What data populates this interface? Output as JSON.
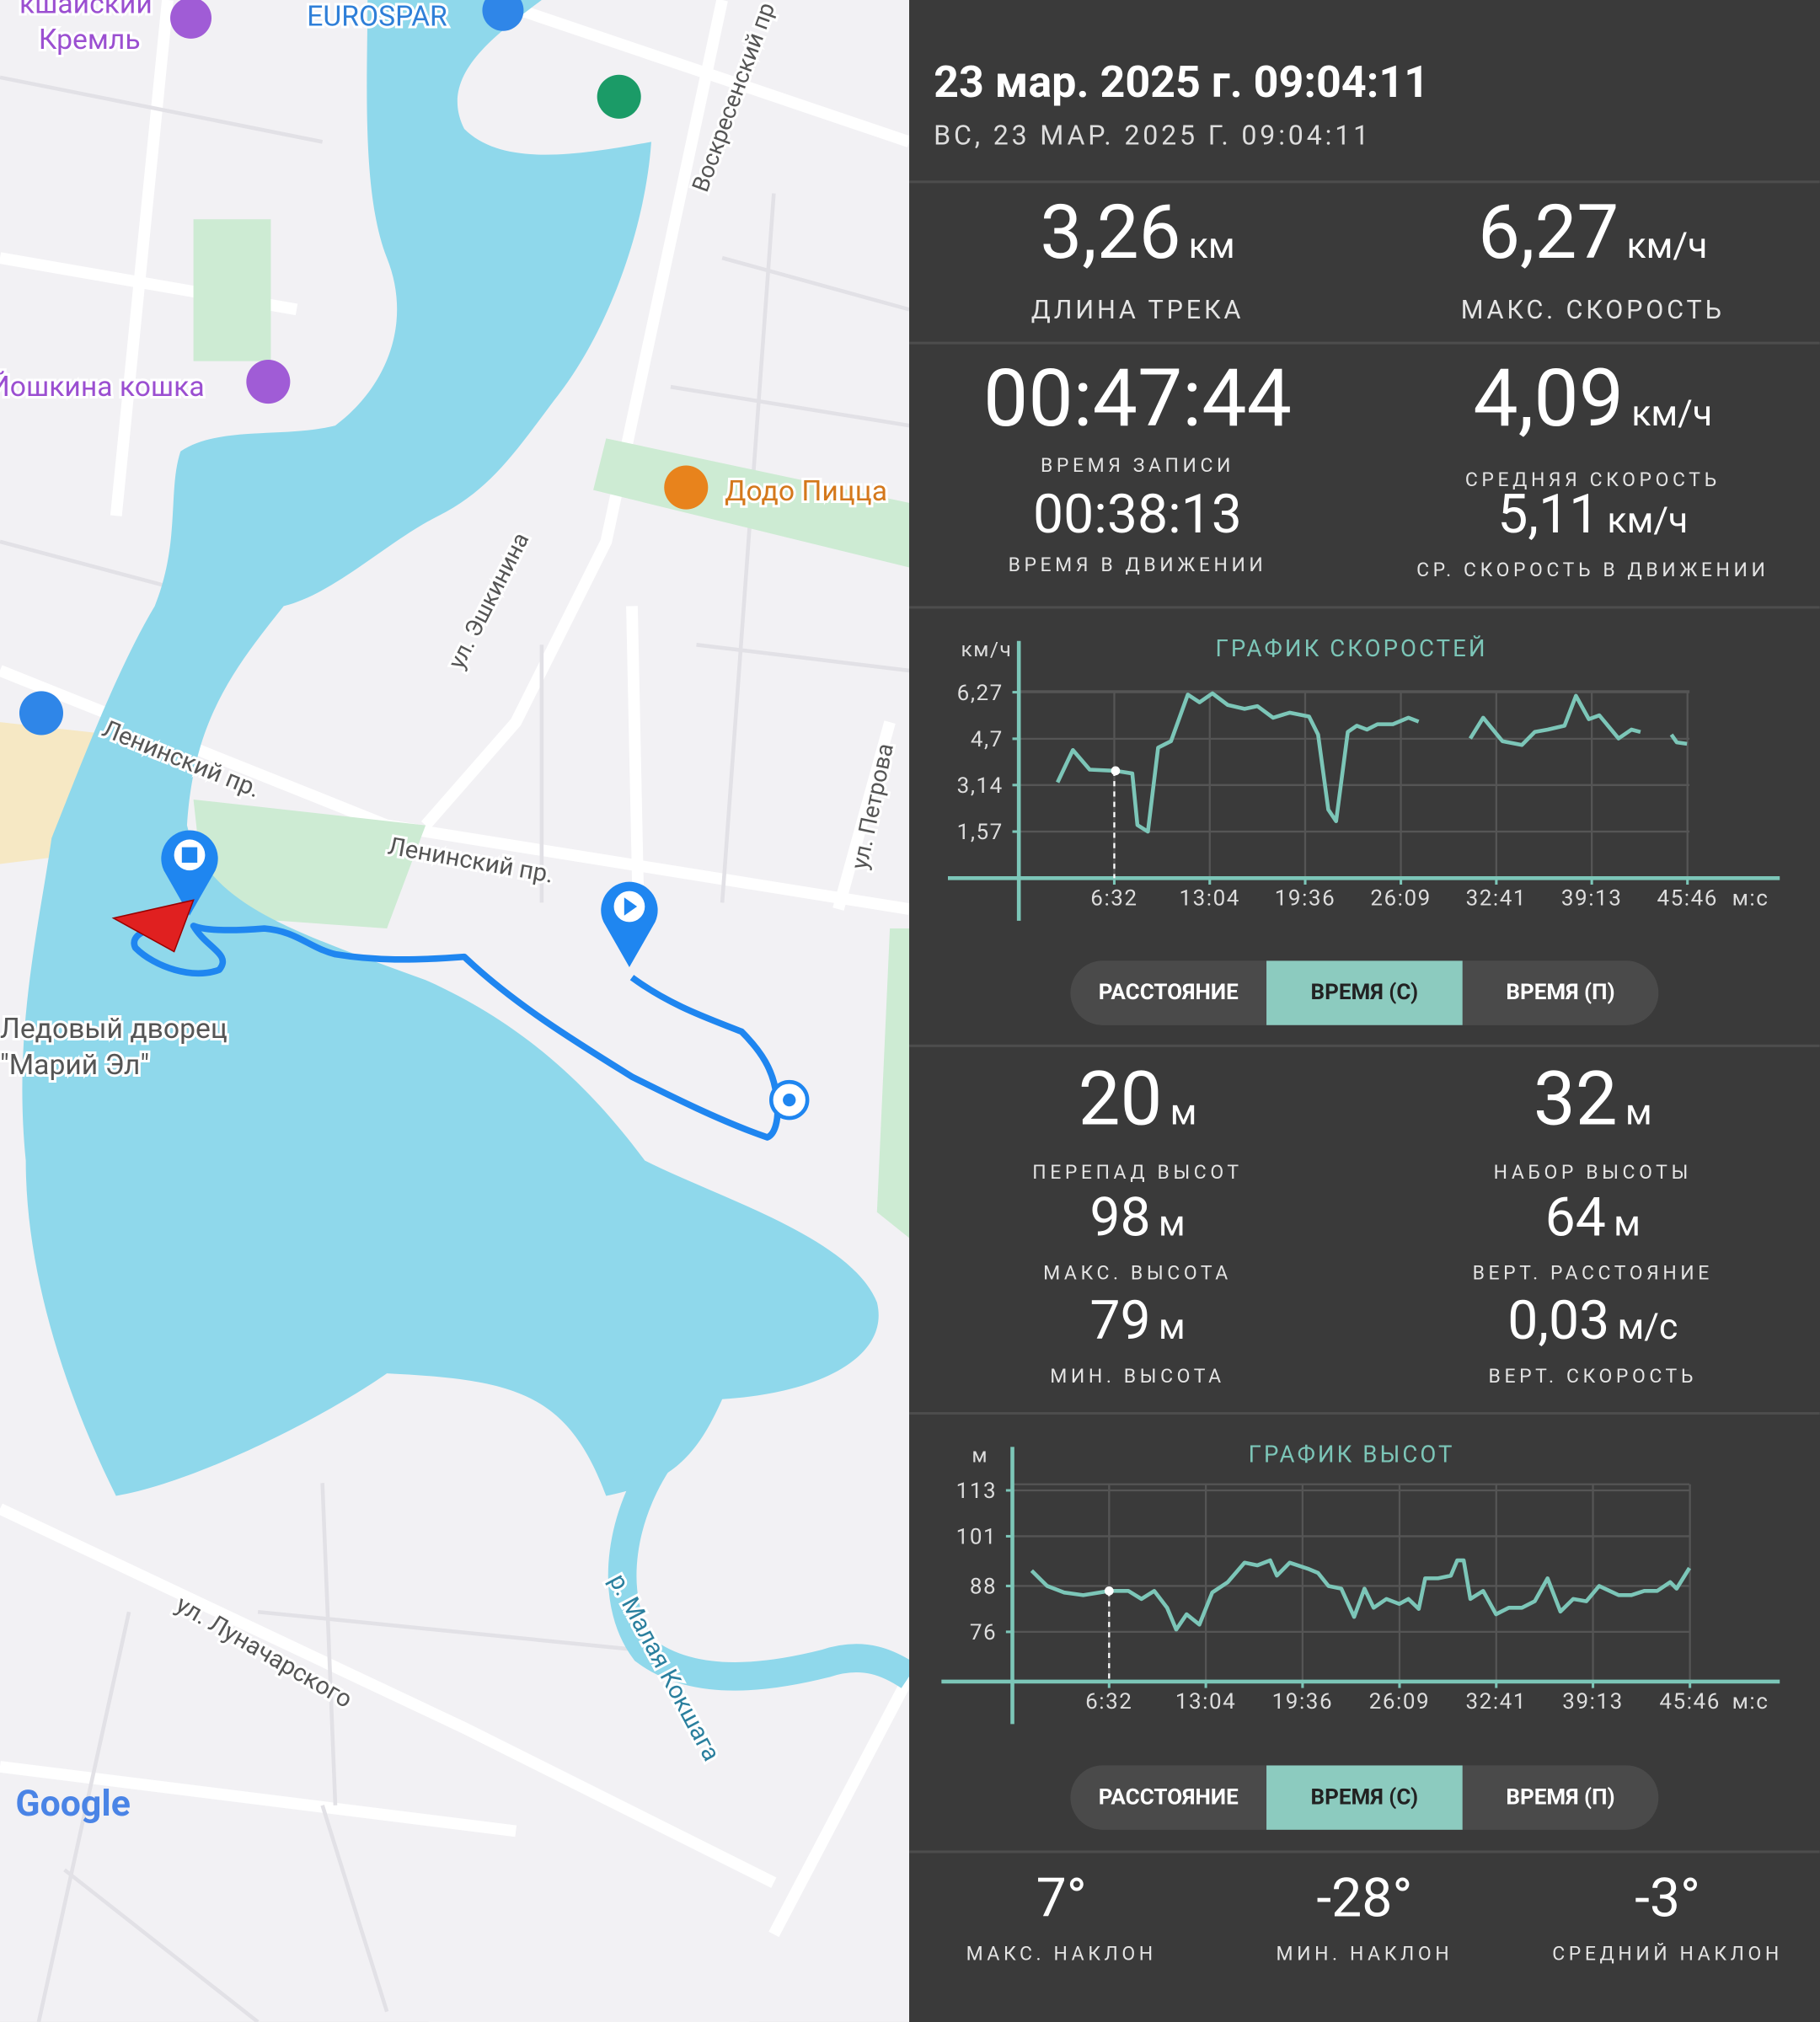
{
  "map": {
    "labels": [
      "кшайский",
      "Кремль",
      "EUROSPAR",
      "Воскресенский пр",
      "Йошкина кошка",
      "Додо Пицца",
      "ул. Эшкинина",
      "Ленинский пр.",
      "Ленинский пр.",
      "ул. Петрова",
      "Ледовый дворец",
      "\"Марий Эл\"",
      "ул. Луначарского",
      "р. Малая Кокшага"
    ],
    "attribution": "Google"
  },
  "header": {
    "title": "23 мар. 2025 г. 09:04:11",
    "subtitle": "ВС, 23 МАР. 2025 Г. 09:04:11"
  },
  "stats": [
    {
      "value": "3,26",
      "unit": "км",
      "label": "ДЛИНА ТРЕКА"
    },
    {
      "value": "6,27",
      "unit": "км/ч",
      "label": "МАКС. СКОРОСТЬ"
    },
    {
      "value": "00:47:44",
      "label": "ВРЕМЯ ЗАПИСИ"
    },
    {
      "value": "4,09",
      "unit": "км/ч",
      "label": "СРЕДНЯЯ СКОРОСТЬ"
    },
    {
      "value": "00:38:13",
      "label": "ВРЕМЯ В ДВИЖЕНИИ"
    },
    {
      "value": "5,11",
      "unit": "км/ч",
      "label": "СР. СКОРОСТЬ В ДВИЖЕНИИ"
    }
  ],
  "chart_data": [
    {
      "type": "line",
      "title": "ГРАФИК СКОРОСТЕЙ",
      "y_label": "км/ч",
      "x_label": "м:с",
      "color": "#7cc6b8",
      "grid": true,
      "x": [
        159,
        222,
        291,
        397,
        466,
        487,
        530,
        572,
        625,
        694,
        742,
        795,
        858,
        927,
        980,
        1044,
        1112,
        1192,
        1229,
        1271,
        1303,
        1351,
        1388,
        1430,
        1473,
        1536,
        1600,
        1642,
        1750,
        1854,
        1907,
        1986,
        2066,
        2119,
        2172,
        2241,
        2288,
        2341,
        2384,
        2463,
        2516,
        2553,
        2620,
        2680,
        2702,
        2744
      ],
      "values": [
        3.23,
        4.32,
        3.66,
        3.62,
        3.53,
        1.79,
        1.57,
        4.4,
        4.62,
        6.19,
        5.93,
        6.23,
        5.84,
        5.71,
        5.8,
        5.41,
        5.58,
        5.45,
        4.84,
        2.31,
        1.92,
        4.93,
        5.14,
        5.01,
        5.19,
        5.19,
        5.41,
        5.28,
        null,
        4.71,
        5.41,
        4.62,
        4.49,
        4.93,
        5.01,
        5.14,
        6.15,
        5.36,
        5.49,
        4.71,
        5.01,
        4.93,
        null,
        4.84,
        4.58,
        4.53
      ],
      "xlim": [
        0,
        3125
      ],
      "ylim": [
        0,
        7
      ],
      "xticks": [
        {
          "value": 392,
          "label": "6:32"
        },
        {
          "value": 784,
          "label": "13:04"
        },
        {
          "value": 1176,
          "label": "19:36"
        },
        {
          "value": 1569,
          "label": "26:09"
        },
        {
          "value": 1961,
          "label": "32:41"
        },
        {
          "value": 2353,
          "label": "39:13"
        },
        {
          "value": 2746,
          "label": "45:46"
        }
      ],
      "yticks": [
        {
          "value": 6.27,
          "label": "6,27"
        },
        {
          "value": 4.7,
          "label": "4,7"
        },
        {
          "value": 3.14,
          "label": "3,14"
        },
        {
          "value": 1.57,
          "label": "1,57"
        }
      ]
    },
    {
      "type": "line",
      "title": "ГРАФИК ВЫСОТ",
      "y_label": "м",
      "x_label": "м:с",
      "color": "#7cc6b8",
      "grid": true,
      "x": [
        78,
        141,
        209,
        287,
        392,
        470,
        523,
        575,
        627,
        664,
        706,
        758,
        810,
        873,
        941,
        993,
        1045,
        1072,
        1124,
        1202,
        1239,
        1281,
        1333,
        1385,
        1427,
        1464,
        1516,
        1568,
        1605,
        1647,
        1673,
        1725,
        1777,
        1803,
        1829,
        1856,
        1908,
        1960,
        2012,
        2065,
        2117,
        2169,
        2221,
        2273,
        2326,
        2378,
        2457,
        2509,
        2561,
        2613,
        2666,
        2692,
        2744
      ],
      "values": [
        92.0,
        88.0,
        86.3,
        85.6,
        86.7,
        86.7,
        84.6,
        86.7,
        82.3,
        76.6,
        80.6,
        77.9,
        86.3,
        89.0,
        94.1,
        93.4,
        94.7,
        90.7,
        94.1,
        92.4,
        91.4,
        88.0,
        87.3,
        79.9,
        87.3,
        82.3,
        84.6,
        83.3,
        84.6,
        82.0,
        90.0,
        90.0,
        90.7,
        94.7,
        94.7,
        84.6,
        86.7,
        80.6,
        82.3,
        82.3,
        84.0,
        90.0,
        81.3,
        84.6,
        84.0,
        88.0,
        85.6,
        85.6,
        86.7,
        86.7,
        89.0,
        87.3,
        92.7
      ],
      "xlim": [
        0,
        3110
      ],
      "ylim": [
        63,
        120
      ],
      "xticks": [
        {
          "value": 392,
          "label": "6:32"
        },
        {
          "value": 784,
          "label": "13:04"
        },
        {
          "value": 1176,
          "label": "19:36"
        },
        {
          "value": 1569,
          "label": "26:09"
        },
        {
          "value": 1961,
          "label": "32:41"
        },
        {
          "value": 2353,
          "label": "39:13"
        },
        {
          "value": 2746,
          "label": "45:46"
        }
      ],
      "yticks": [
        113,
        101,
        88,
        76
      ]
    }
  ],
  "toggle_groups": [
    {
      "options": [
        "РАССТОЯНИЕ",
        "ВРЕМЯ (С)",
        "ВРЕМЯ (П)"
      ],
      "selected": 1
    },
    {
      "options": [
        "РАССТОЯНИЕ",
        "ВРЕМЯ (С)",
        "ВРЕМЯ (П)"
      ],
      "selected": 1
    }
  ],
  "elevation_stats": [
    {
      "value": "20",
      "unit": "м",
      "label": "ПЕРЕПАД ВЫСОТ"
    },
    {
      "value": "32",
      "unit": "м",
      "label": "НАБОР ВЫСОТЫ"
    },
    {
      "value": "98",
      "unit": "м",
      "label": "МАКС. ВЫСОТА"
    },
    {
      "value": "64",
      "unit": "м",
      "label": "ВЕРТ. РАССТОЯНИЕ"
    },
    {
      "value": "79",
      "unit": "м",
      "label": "МИН. ВЫСОТА"
    },
    {
      "value": "0,03",
      "unit": "м/с",
      "label": "ВЕРТ. СКОРОСТЬ"
    }
  ],
  "slope_stats": [
    {
      "value": "7°",
      "label": "МАКС. НАКЛОН"
    },
    {
      "value": "-28°",
      "label": "МИН. НАКЛОН"
    },
    {
      "value": "-3°",
      "label": "СРЕДНИЙ НАКЛОН"
    }
  ]
}
